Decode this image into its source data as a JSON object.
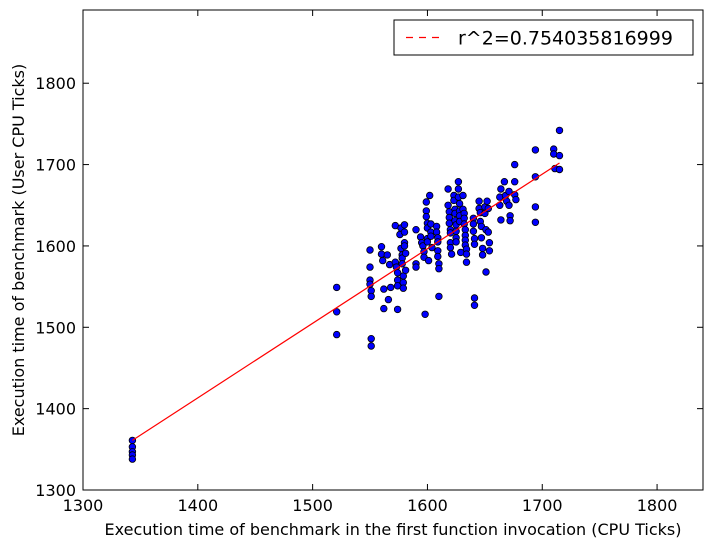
{
  "chart_data": {
    "type": "scatter",
    "title": "",
    "xlabel": "Execution time of benchmark in the first function invocation (CPU Ticks)",
    "ylabel": "Execution time of benchmark (User CPU Ticks)",
    "xlim": [
      1300,
      1840
    ],
    "ylim": [
      1300,
      1890
    ],
    "xticks": [
      1300,
      1400,
      1500,
      1600,
      1700,
      1800
    ],
    "yticks": [
      1300,
      1400,
      1500,
      1600,
      1700,
      1800
    ],
    "grid": false,
    "legend": {
      "placement": "top-right",
      "entries": [
        {
          "label": "r^2=0.754035816999",
          "style": "dashed",
          "color": "#ff0000"
        }
      ]
    },
    "series": [
      {
        "type": "scatter",
        "color": "#0000ff",
        "points": [
          [
            1343,
            1361
          ],
          [
            1343,
            1353
          ],
          [
            1343,
            1347
          ],
          [
            1343,
            1343
          ],
          [
            1343,
            1338
          ],
          [
            1521,
            1549
          ],
          [
            1521,
            1519
          ],
          [
            1521,
            1491
          ],
          [
            1550,
            1595
          ],
          [
            1550,
            1574
          ],
          [
            1550,
            1558
          ],
          [
            1550,
            1553
          ],
          [
            1551,
            1545
          ],
          [
            1551,
            1538
          ],
          [
            1551,
            1486
          ],
          [
            1551,
            1477
          ],
          [
            1560,
            1599
          ],
          [
            1560,
            1590
          ],
          [
            1561,
            1582
          ],
          [
            1562,
            1547
          ],
          [
            1562,
            1523
          ],
          [
            1565,
            1589
          ],
          [
            1566,
            1534
          ],
          [
            1567,
            1577
          ],
          [
            1568,
            1549
          ],
          [
            1572,
            1625
          ],
          [
            1572,
            1580
          ],
          [
            1573,
            1574
          ],
          [
            1574,
            1567
          ],
          [
            1574,
            1558
          ],
          [
            1574,
            1551
          ],
          [
            1574,
            1522
          ],
          [
            1576,
            1614
          ],
          [
            1577,
            1622
          ],
          [
            1577,
            1597
          ],
          [
            1578,
            1589
          ],
          [
            1578,
            1585
          ],
          [
            1578,
            1578
          ],
          [
            1579,
            1563
          ],
          [
            1579,
            1555
          ],
          [
            1579,
            1548
          ],
          [
            1580,
            1626
          ],
          [
            1580,
            1617
          ],
          [
            1580,
            1604
          ],
          [
            1580,
            1600
          ],
          [
            1581,
            1591
          ],
          [
            1581,
            1570
          ],
          [
            1590,
            1620
          ],
          [
            1590,
            1578
          ],
          [
            1590,
            1574
          ],
          [
            1594,
            1611
          ],
          [
            1595,
            1604
          ],
          [
            1596,
            1600
          ],
          [
            1597,
            1593
          ],
          [
            1597,
            1586
          ],
          [
            1598,
            1516
          ],
          [
            1599,
            1654
          ],
          [
            1599,
            1643
          ],
          [
            1599,
            1636
          ],
          [
            1600,
            1628
          ],
          [
            1600,
            1622
          ],
          [
            1600,
            1609
          ],
          [
            1600,
            1605
          ],
          [
            1601,
            1582
          ],
          [
            1602,
            1662
          ],
          [
            1603,
            1627
          ],
          [
            1603,
            1617
          ],
          [
            1603,
            1612
          ],
          [
            1604,
            1598
          ],
          [
            1608,
            1624
          ],
          [
            1608,
            1617
          ],
          [
            1609,
            1610
          ],
          [
            1609,
            1605
          ],
          [
            1609,
            1594
          ],
          [
            1609,
            1587
          ],
          [
            1610,
            1578
          ],
          [
            1610,
            1572
          ],
          [
            1610,
            1538
          ],
          [
            1618,
            1670
          ],
          [
            1618,
            1650
          ],
          [
            1619,
            1642
          ],
          [
            1619,
            1635
          ],
          [
            1619,
            1628
          ],
          [
            1620,
            1620
          ],
          [
            1620,
            1616
          ],
          [
            1620,
            1604
          ],
          [
            1620,
            1598
          ],
          [
            1621,
            1590
          ],
          [
            1623,
            1662
          ],
          [
            1623,
            1656
          ],
          [
            1624,
            1645
          ],
          [
            1624,
            1640
          ],
          [
            1624,
            1631
          ],
          [
            1625,
            1626
          ],
          [
            1625,
            1618
          ],
          [
            1625,
            1610
          ],
          [
            1625,
            1605
          ],
          [
            1627,
            1679
          ],
          [
            1627,
            1670
          ],
          [
            1627,
            1660
          ],
          [
            1628,
            1652
          ],
          [
            1628,
            1643
          ],
          [
            1628,
            1637
          ],
          [
            1628,
            1630
          ],
          [
            1629,
            1592
          ],
          [
            1631,
            1662
          ],
          [
            1631,
            1645
          ],
          [
            1632,
            1640
          ],
          [
            1632,
            1634
          ],
          [
            1632,
            1627
          ],
          [
            1633,
            1620
          ],
          [
            1633,
            1613
          ],
          [
            1633,
            1607
          ],
          [
            1633,
            1601
          ],
          [
            1634,
            1596
          ],
          [
            1634,
            1590
          ],
          [
            1634,
            1580
          ],
          [
            1640,
            1634
          ],
          [
            1640,
            1627
          ],
          [
            1640,
            1618
          ],
          [
            1641,
            1609
          ],
          [
            1641,
            1602
          ],
          [
            1641,
            1536
          ],
          [
            1641,
            1527
          ],
          [
            1645,
            1655
          ],
          [
            1645,
            1646
          ],
          [
            1646,
            1641
          ],
          [
            1646,
            1630
          ],
          [
            1647,
            1624
          ],
          [
            1647,
            1610
          ],
          [
            1648,
            1597
          ],
          [
            1648,
            1589
          ],
          [
            1650,
            1648
          ],
          [
            1650,
            1640
          ],
          [
            1651,
            1620
          ],
          [
            1651,
            1568
          ],
          [
            1652,
            1655
          ],
          [
            1653,
            1646
          ],
          [
            1653,
            1617
          ],
          [
            1654,
            1604
          ],
          [
            1654,
            1594
          ],
          [
            1663,
            1660
          ],
          [
            1663,
            1650
          ],
          [
            1664,
            1670
          ],
          [
            1664,
            1632
          ],
          [
            1667,
            1679
          ],
          [
            1668,
            1662
          ],
          [
            1669,
            1655
          ],
          [
            1671,
            1667
          ],
          [
            1671,
            1650
          ],
          [
            1672,
            1637
          ],
          [
            1672,
            1631
          ],
          [
            1676,
            1700
          ],
          [
            1676,
            1679
          ],
          [
            1676,
            1663
          ],
          [
            1677,
            1657
          ],
          [
            1694,
            1718
          ],
          [
            1694,
            1685
          ],
          [
            1694,
            1648
          ],
          [
            1694,
            1629
          ],
          [
            1710,
            1719
          ],
          [
            1710,
            1713
          ],
          [
            1711,
            1695
          ],
          [
            1715,
            1742
          ],
          [
            1715,
            1711
          ],
          [
            1715,
            1694
          ]
        ]
      },
      {
        "type": "line",
        "style": "solid",
        "color": "#ff0000",
        "points": [
          [
            1343,
            1361
          ],
          [
            1715,
            1702
          ]
        ]
      }
    ]
  }
}
